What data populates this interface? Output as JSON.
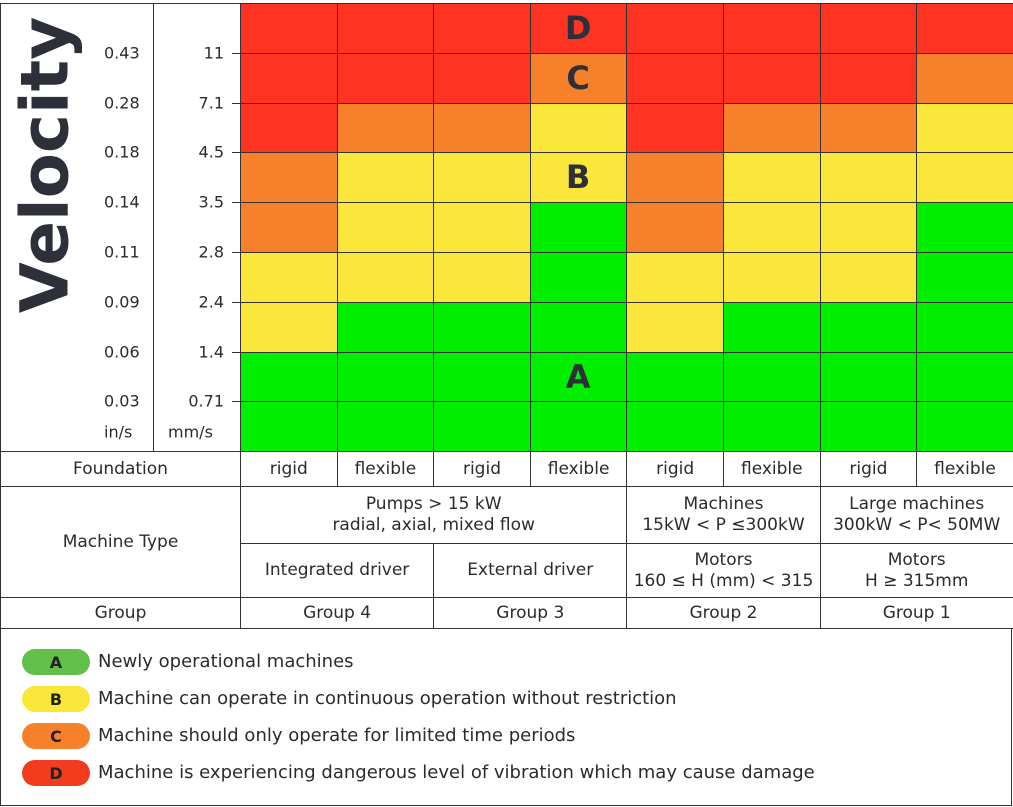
{
  "axis": {
    "title": "Velocity",
    "in_s_unit": "in/s",
    "mm_s_unit": "mm/s",
    "in_s": [
      "0.43",
      "0.28",
      "0.18",
      "0.14",
      "0.11",
      "0.09",
      "0.06",
      "0.03"
    ],
    "mm_s": [
      "11",
      "7.1",
      "4.5",
      "3.5",
      "2.8",
      "2.4",
      "1.4",
      "0.71"
    ]
  },
  "zones": [
    [
      "D",
      "D",
      "D",
      "D",
      "D",
      "D",
      "D",
      "D"
    ],
    [
      "D",
      "D",
      "D",
      "C",
      "D",
      "D",
      "D",
      "C"
    ],
    [
      "D",
      "C",
      "C",
      "B",
      "D",
      "C",
      "C",
      "B"
    ],
    [
      "C",
      "B",
      "B",
      "B",
      "C",
      "B",
      "B",
      "B"
    ],
    [
      "C",
      "B",
      "B",
      "A",
      "C",
      "B",
      "B",
      "A"
    ],
    [
      "B",
      "B",
      "B",
      "A",
      "B",
      "B",
      "B",
      "A"
    ],
    [
      "B",
      "A",
      "A",
      "A",
      "B",
      "A",
      "A",
      "A"
    ],
    [
      "A",
      "A",
      "A",
      "A",
      "A",
      "A",
      "A",
      "A"
    ],
    [
      "A",
      "A",
      "A",
      "A",
      "A",
      "A",
      "A",
      "A"
    ]
  ],
  "table": {
    "foundation_label": "Foundation",
    "foundations": [
      "rigid",
      "flexible",
      "rigid",
      "flexible",
      "rigid",
      "flexible",
      "rigid",
      "flexible"
    ],
    "machine_type_label": "Machine Type",
    "machine_types": [
      "Pumps  > 15 kW\nradial, axial, mixed flow",
      "Machines\n15kW < P ≤300kW",
      "Large machines\n300kW < P< 50MW"
    ],
    "drivers": [
      "Integrated driver",
      "External driver",
      "Motors\n160 ≤ H (mm) < 315",
      "Motors\nH ≥ 315mm"
    ],
    "group_label": "Group",
    "groups": [
      "Group 4",
      "Group 3",
      "Group 2",
      "Group 1"
    ]
  },
  "legend": {
    "items": [
      {
        "letter": "A",
        "cell_color": "#00ee00",
        "badge_color": "#62c04a",
        "text": "Newly operational machines"
      },
      {
        "letter": "B",
        "cell_color": "#fbe63c",
        "badge_color": "#fbe63c",
        "text": "Machine can operate in continuous operation without restriction"
      },
      {
        "letter": "C",
        "cell_color": "#f7812a",
        "badge_color": "#f7812a",
        "text": "Machine should only operate for limited time periods"
      },
      {
        "letter": "D",
        "cell_color": "#ff3322",
        "badge_color": "#f23c1e",
        "text": "Machine is experiencing dangerous level of vibration which may cause damage"
      }
    ]
  }
}
